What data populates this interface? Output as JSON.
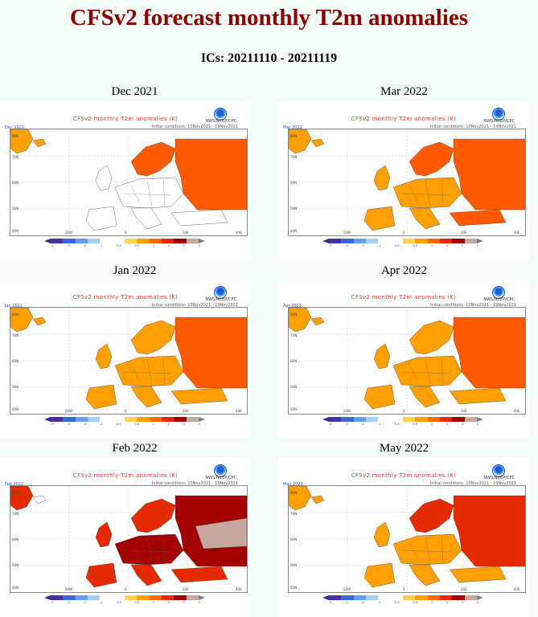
{
  "page": {
    "title": "CFSv2 forecast monthly T2m anomalies",
    "ics": "ICs: 20211110 - 20211119"
  },
  "panels": [
    {
      "month": "Dec 2021",
      "plot_title": "CFSv2 monthly T2m anomalies (K)",
      "plot_date": "Dec 2021",
      "agency": "NWS/NCEP/CPC",
      "stamp": "Initial conditions: 10Nov2021 - 19Nov2021",
      "scheme": "dec"
    },
    {
      "month": "Mar 2022",
      "plot_title": "CFSv2 monthly T2m anomalies (K)",
      "plot_date": "Mar 2022",
      "agency": "NWS/NCEP/CPC",
      "stamp": "Initial conditions: 10Nov2021 - 19Nov2021",
      "scheme": "mar"
    },
    {
      "month": "Jan 2022",
      "plot_title": "CFSv2 monthly T2m anomalies (K)",
      "plot_date": "Jan 2022",
      "agency": "NWS/NCEP/CPC",
      "stamp": "Initial conditions: 10Nov2021 - 19Nov2021",
      "scheme": "jan"
    },
    {
      "month": "Apr 2022",
      "plot_title": "CFSv2 monthly T2m anomalies (K)",
      "plot_date": "Apr 2022",
      "agency": "NWS/NCEP/CPC",
      "stamp": "Initial conditions: 10Nov2021 - 19Nov2021",
      "scheme": "apr"
    },
    {
      "month": "Feb 2022",
      "plot_title": "CFSv2 monthly T2m anomalies (K)",
      "plot_date": "Feb 2022",
      "agency": "NWS/NCEP/CPC",
      "stamp": "Initial conditions: 10Nov2021 - 19Nov2021",
      "scheme": "feb"
    },
    {
      "month": "May 2022",
      "plot_title": "CFSv2 monthly T2m anomalies (K)",
      "plot_date": "May 2022",
      "agency": "NWS/NCEP/CPC",
      "stamp": "Initial conditions: 10Nov2021 - 19Nov2021",
      "scheme": "may"
    }
  ],
  "colorbar": {
    "colors": [
      "#4b2fa0",
      "#3b66d8",
      "#5fa0f0",
      "#a7d0f7",
      "#ffffff",
      "#ffffff",
      "#ffd24d",
      "#ff9f00",
      "#ff6a00",
      "#e52a00",
      "#a30000",
      "#c7a7a0"
    ],
    "labels": [
      "-5",
      "-3",
      "-2",
      "-1",
      "-0.5",
      "0.5",
      "1",
      "2",
      "3",
      "5"
    ]
  },
  "anomaly_colors": {
    "none": "#ffffff",
    "light": "#ffcf5a",
    "orange": "#ff9f00",
    "red": "#ff5a00",
    "deep": "#e52a00",
    "dark": "#a30000",
    "taupe": "#c7a7a0"
  }
}
